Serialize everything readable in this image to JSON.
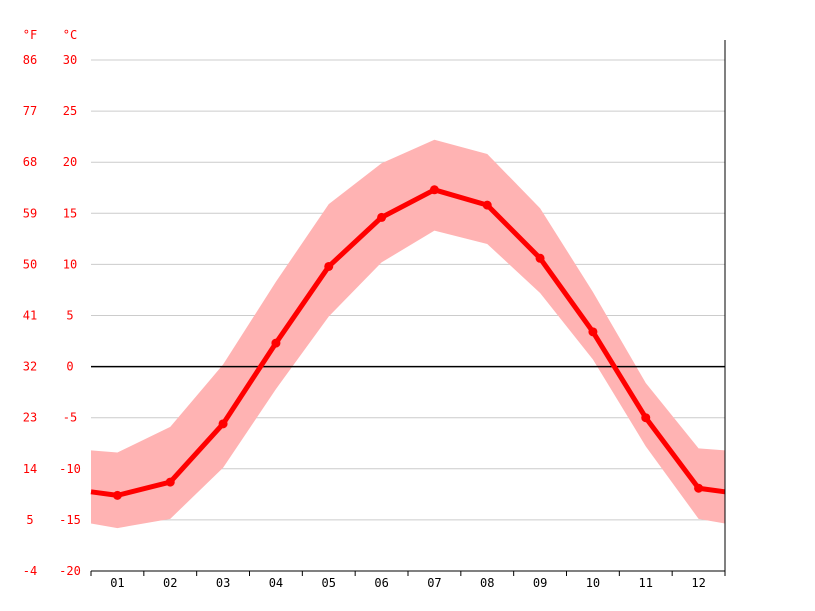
{
  "chart_data": {
    "type": "line",
    "title": "",
    "units": {
      "left": "°F",
      "right": "°C"
    },
    "categories": [
      "01",
      "02",
      "03",
      "04",
      "05",
      "06",
      "07",
      "08",
      "09",
      "10",
      "11",
      "12"
    ],
    "y_celsius_ticks": [
      "30",
      "25",
      "20",
      "15",
      "10",
      "5",
      "0",
      "-5",
      "-10",
      "-15",
      "-20"
    ],
    "y_fahrenheit_ticks": [
      "86",
      "77",
      "68",
      "59",
      "50",
      "41",
      "32",
      "23",
      "14",
      "5",
      "-4"
    ],
    "ylim": [
      -20,
      30
    ],
    "grid": true,
    "series": [
      {
        "role": "mean",
        "values": [
          -12.6,
          -11.3,
          -5.6,
          2.3,
          9.8,
          14.6,
          17.3,
          15.8,
          10.6,
          3.4,
          -5.0,
          -11.9
        ]
      },
      {
        "role": "max",
        "values": [
          -8.4,
          -5.9,
          0.2,
          8.3,
          15.9,
          19.9,
          22.2,
          20.8,
          15.5,
          7.3,
          -1.6,
          -8.0
        ]
      },
      {
        "role": "min",
        "values": [
          -15.8,
          -14.9,
          -9.9,
          -2.2,
          4.9,
          10.2,
          13.3,
          12.0,
          7.2,
          0.7,
          -7.8,
          -14.9
        ]
      }
    ],
    "colors": {
      "accent": "#ff0000",
      "band": "#ffb3b3",
      "grid": "#cccccc",
      "zero_line": "#000000"
    }
  }
}
